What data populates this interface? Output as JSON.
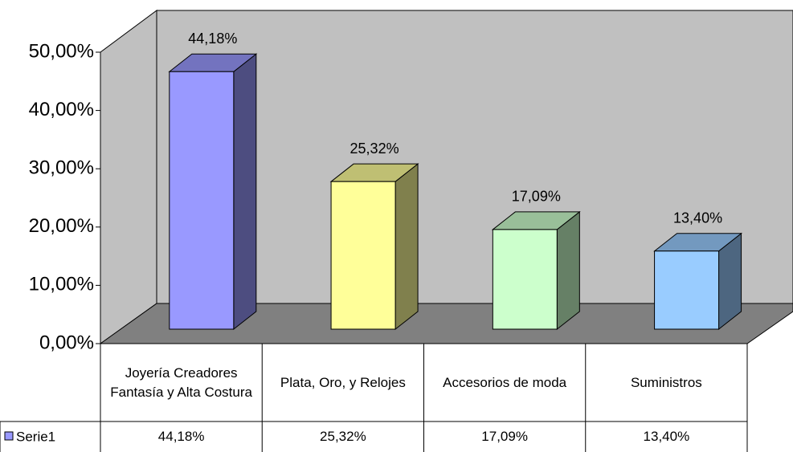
{
  "chart_data": {
    "type": "bar3d",
    "categories": [
      "Joyería Creadores Fantasía y Alta Costura",
      "Plata, Oro, y Relojes",
      "Accesorios de moda",
      "Suministros"
    ],
    "series": [
      {
        "name": "Serie1",
        "color": "#9999ff",
        "colors": [
          "#9999ff",
          "#ffff99",
          "#ccffcc",
          "#99ccff"
        ],
        "values": [
          44.18,
          25.32,
          17.09,
          13.4
        ],
        "value_labels": [
          "44,18%",
          "25,32%",
          "17,09%",
          "13,40%"
        ]
      }
    ],
    "ylim": [
      0,
      50
    ],
    "yticks": [
      {
        "value": 0,
        "label": "0,00%"
      },
      {
        "value": 10,
        "label": "10,00%"
      },
      {
        "value": 20,
        "label": "20,00%"
      },
      {
        "value": 30,
        "label": "30,00%"
      },
      {
        "value": 40,
        "label": "40,00%"
      },
      {
        "value": 50,
        "label": "50,00%"
      }
    ],
    "data_table": true
  }
}
